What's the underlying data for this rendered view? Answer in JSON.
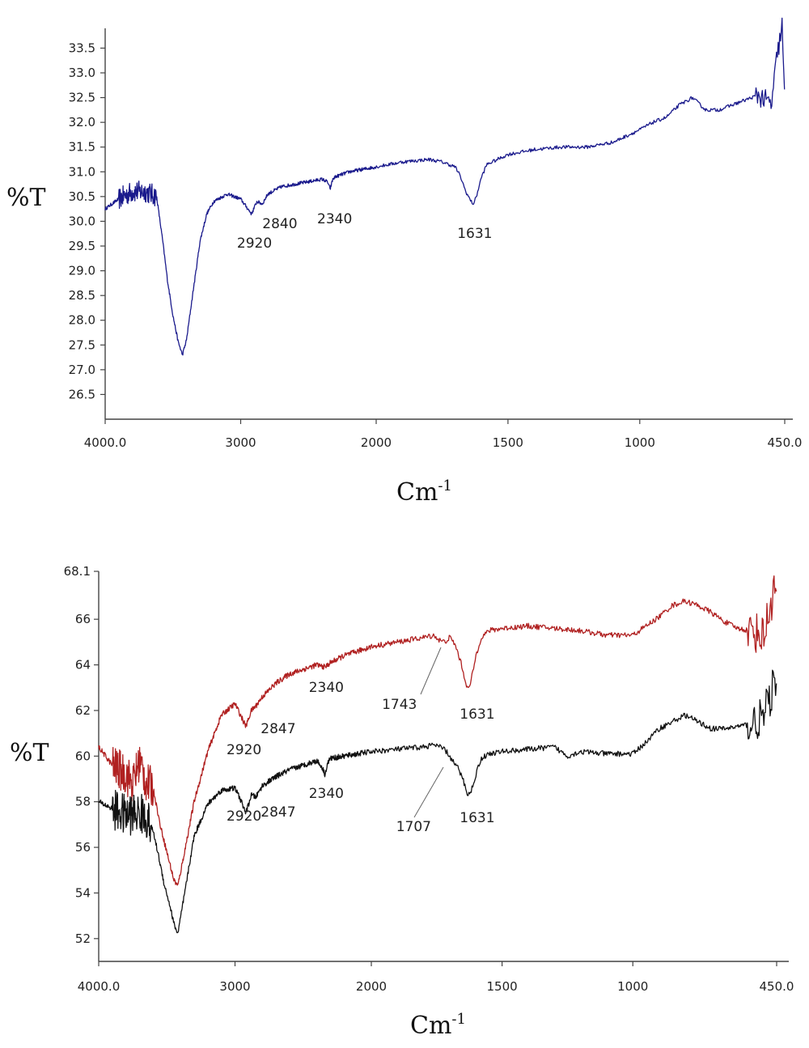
{
  "chart_data": [
    {
      "type": "line",
      "ylabel": "%T",
      "xlabel_base": "Cm",
      "xlabel_exp": "-1",
      "x_tick_labels": [
        "4000.0",
        "3000",
        "2000",
        "1500",
        "1000",
        "450.0"
      ],
      "x_tick_values": [
        4000,
        3000,
        2000,
        1500,
        1000,
        450
      ],
      "x_axis_note": "x axis split: linear 4000-2000 and 2000-450 segments",
      "y_tick_labels": [
        "26.5",
        "27.0",
        "27.5",
        "28.0",
        "28.5",
        "29.0",
        "29.5",
        "30.0",
        "30.5",
        "31.0",
        "31.5",
        "32.0",
        "32.5",
        "33.0",
        "33.5"
      ],
      "ylim": [
        26.0,
        33.9
      ],
      "series": [
        {
          "color": "#1a1a8c",
          "x": [
            4000,
            3900,
            3800,
            3700,
            3620,
            3580,
            3540,
            3500,
            3460,
            3430,
            3400,
            3350,
            3300,
            3250,
            3200,
            3100,
            3000,
            2960,
            2920,
            2880,
            2840,
            2800,
            2700,
            2600,
            2500,
            2400,
            2360,
            2340,
            2320,
            2300,
            2200,
            2100,
            2000,
            1900,
            1800,
            1750,
            1700,
            1680,
            1660,
            1640,
            1631,
            1620,
            1600,
            1580,
            1560,
            1500,
            1450,
            1400,
            1300,
            1200,
            1100,
            1000,
            950,
            900,
            850,
            800,
            750,
            700,
            650,
            600,
            550,
            500,
            480,
            460,
            450
          ],
          "y": [
            30.25,
            30.45,
            30.6,
            30.6,
            30.5,
            29.7,
            28.8,
            28.1,
            27.55,
            27.3,
            27.6,
            28.6,
            29.6,
            30.15,
            30.4,
            30.55,
            30.45,
            30.3,
            30.15,
            30.4,
            30.35,
            30.55,
            30.7,
            30.75,
            30.8,
            30.85,
            30.8,
            30.65,
            30.85,
            30.9,
            31.0,
            31.05,
            31.1,
            31.2,
            31.25,
            31.2,
            31.1,
            30.9,
            30.6,
            30.4,
            30.35,
            30.5,
            30.9,
            31.15,
            31.2,
            31.35,
            31.4,
            31.45,
            31.5,
            31.5,
            31.6,
            31.85,
            32.0,
            32.1,
            32.35,
            32.5,
            32.25,
            32.25,
            32.35,
            32.45,
            32.55,
            32.35,
            33.3,
            33.95,
            32.35
          ],
          "noise_regions": [
            [
              3900,
              3620
            ],
            [
              560,
              450
            ]
          ]
        }
      ],
      "annotations": [
        {
          "text": "2920",
          "x": 2920
        },
        {
          "text": "2840",
          "x": 2840
        },
        {
          "text": "2340",
          "x": 2340
        },
        {
          "text": "1631",
          "x": 1631
        }
      ]
    },
    {
      "type": "line",
      "ylabel": "%T",
      "xlabel_base": "Cm",
      "xlabel_exp": "-1",
      "x_tick_labels": [
        "4000.0",
        "3000",
        "2000",
        "1500",
        "1000",
        "450.0"
      ],
      "x_tick_values": [
        4000,
        3000,
        2000,
        1500,
        1000,
        450
      ],
      "y_tick_labels": [
        "52",
        "54",
        "56",
        "58",
        "60",
        "62",
        "64",
        "66",
        "68.1"
      ],
      "y_tick_values": [
        52,
        54,
        56,
        58,
        60,
        62,
        64,
        66,
        68.1
      ],
      "ylim": [
        51.0,
        68.1
      ],
      "series": [
        {
          "color": "#b02020",
          "x": [
            4000,
            3900,
            3800,
            3750,
            3700,
            3650,
            3600,
            3550,
            3500,
            3450,
            3420,
            3380,
            3300,
            3200,
            3100,
            3000,
            2960,
            2920,
            2880,
            2847,
            2800,
            2700,
            2600,
            2500,
            2400,
            2340,
            2300,
            2200,
            2100,
            2000,
            1900,
            1800,
            1760,
            1743,
            1720,
            1700,
            1680,
            1660,
            1640,
            1631,
            1620,
            1600,
            1580,
            1550,
            1500,
            1400,
            1300,
            1200,
            1100,
            1000,
            950,
            900,
            850,
            800,
            750,
            700,
            650,
            600,
            550,
            500,
            480,
            460,
            450
          ],
          "y": [
            60.4,
            59.6,
            59.2,
            58.8,
            59.8,
            58.8,
            58.6,
            57.0,
            55.8,
            54.6,
            54.3,
            55.5,
            58.0,
            60.2,
            61.8,
            62.3,
            61.8,
            61.3,
            62.0,
            62.2,
            62.6,
            63.2,
            63.6,
            63.8,
            64.0,
            63.9,
            64.1,
            64.4,
            64.6,
            64.8,
            65.0,
            65.2,
            65.3,
            65.1,
            65.0,
            65.2,
            64.9,
            64.2,
            63.3,
            62.9,
            63.2,
            64.4,
            65.2,
            65.5,
            65.6,
            65.7,
            65.6,
            65.5,
            65.3,
            65.3,
            65.7,
            66.1,
            66.6,
            66.8,
            66.6,
            66.3,
            65.9,
            65.6,
            65.5,
            65.3,
            66.2,
            67.4,
            66.6
          ],
          "noise_regions": [
            [
              3900,
              3600
            ],
            [
              560,
              450
            ]
          ]
        },
        {
          "color": "#111111",
          "x": [
            4000,
            3900,
            3800,
            3700,
            3650,
            3600,
            3560,
            3520,
            3480,
            3450,
            3420,
            3380,
            3300,
            3200,
            3100,
            3000,
            2960,
            2920,
            2880,
            2847,
            2800,
            2700,
            2600,
            2500,
            2400,
            2360,
            2340,
            2320,
            2300,
            2200,
            2100,
            2000,
            1900,
            1800,
            1760,
            1720,
            1707,
            1690,
            1670,
            1650,
            1631,
            1620,
            1600,
            1580,
            1550,
            1500,
            1400,
            1300,
            1250,
            1200,
            1100,
            1000,
            950,
            900,
            850,
            800,
            750,
            700,
            650,
            600,
            550,
            500,
            480,
            460,
            450
          ],
          "y": [
            58.0,
            57.7,
            57.4,
            57.5,
            57.3,
            56.7,
            55.6,
            54.4,
            53.5,
            52.7,
            52.2,
            53.6,
            56.5,
            57.9,
            58.5,
            58.6,
            58.1,
            57.5,
            58.3,
            58.2,
            58.7,
            59.1,
            59.4,
            59.6,
            59.8,
            59.5,
            59.2,
            59.7,
            59.9,
            60.0,
            60.1,
            60.2,
            60.3,
            60.4,
            60.5,
            60.3,
            60.1,
            59.8,
            59.5,
            59.0,
            58.3,
            58.4,
            59.2,
            59.9,
            60.1,
            60.2,
            60.3,
            60.4,
            60.0,
            60.2,
            60.1,
            60.1,
            60.6,
            61.2,
            61.5,
            61.8,
            61.5,
            61.2,
            61.2,
            61.3,
            61.4,
            61.7,
            62.4,
            63.2,
            62.5
          ],
          "noise_regions": [
            [
              3900,
              3620
            ],
            [
              560,
              450
            ]
          ]
        }
      ],
      "annotations": [
        {
          "text": "2920",
          "x": 2920
        },
        {
          "text": "2847",
          "x": 2847
        },
        {
          "text": "2340",
          "x": 2340
        },
        {
          "text": "1743",
          "x": 1743
        },
        {
          "text": "1631",
          "x": 1631
        },
        {
          "text": "2920",
          "x": 2920
        },
        {
          "text": "2847",
          "x": 2847
        },
        {
          "text": "2340",
          "x": 2340
        },
        {
          "text": "1707",
          "x": 1707
        },
        {
          "text": "1631",
          "x": 1631
        }
      ]
    }
  ]
}
